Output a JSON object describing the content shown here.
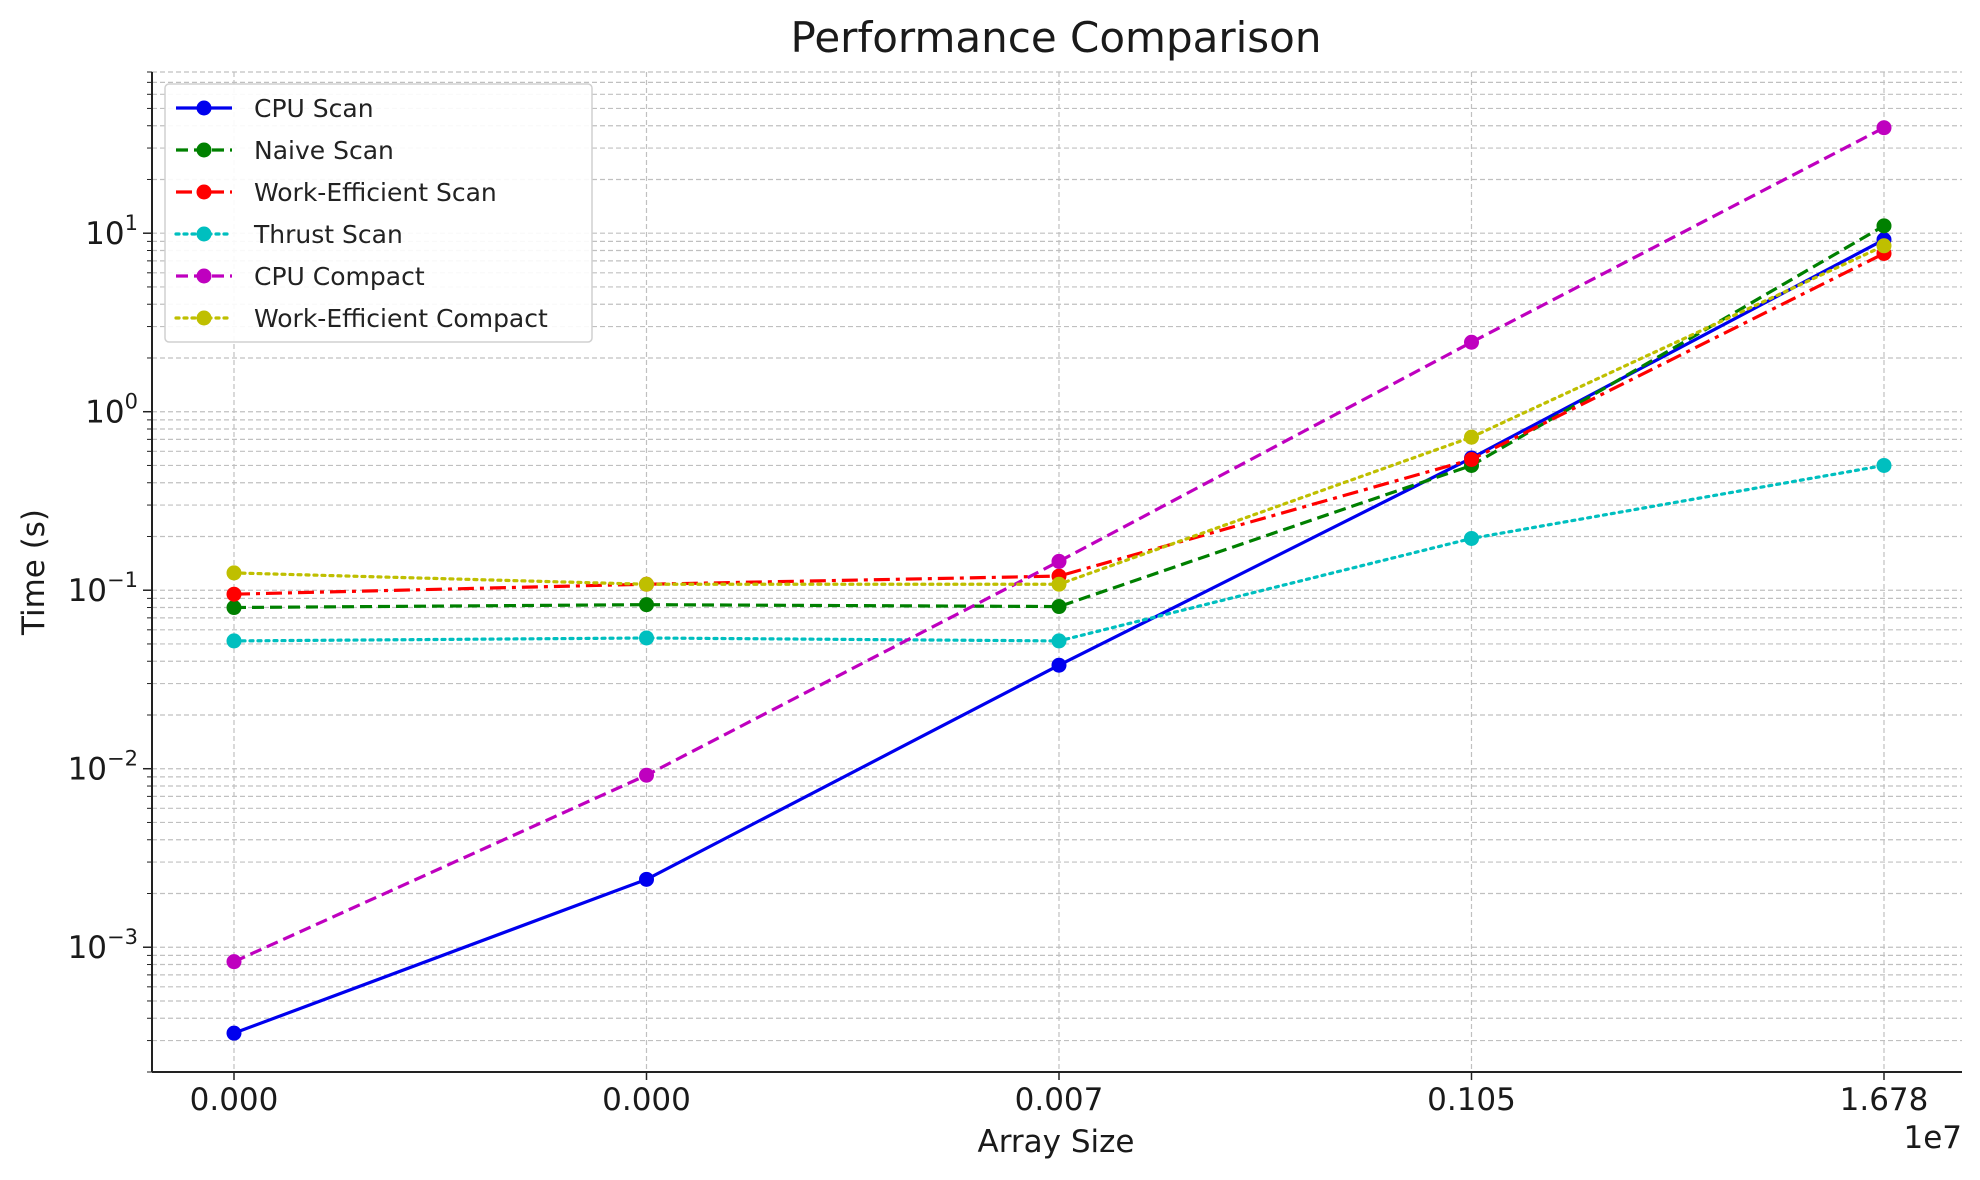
{
  "chart_data": {
    "type": "line",
    "title": "Performance Comparison",
    "xlabel": "Array Size",
    "ylabel": "Time (s)",
    "x_offset_label": "1e7",
    "yscale": "log",
    "ylim": [
      0.0002,
      80
    ],
    "grid": true,
    "legend_position": "top-left",
    "categories": [
      "0.000",
      "0.000",
      "0.007",
      "0.105",
      "1.678"
    ],
    "y_ticks": [
      {
        "base": "10",
        "exp": "−3",
        "value": 0.001
      },
      {
        "base": "10",
        "exp": "−2",
        "value": 0.01
      },
      {
        "base": "10",
        "exp": "−1",
        "value": 0.1
      },
      {
        "base": "10",
        "exp": "0",
        "value": 1
      },
      {
        "base": "10",
        "exp": "1",
        "value": 10
      }
    ],
    "series": [
      {
        "name": "CPU Scan",
        "color": "#0000ee",
        "dash": "solid",
        "values": [
          0.00033,
          0.0024,
          0.038,
          0.55,
          9.2
        ]
      },
      {
        "name": "Naive Scan",
        "color": "#008000",
        "dash": "dashed",
        "values": [
          0.08,
          0.083,
          0.081,
          0.5,
          11.0
        ]
      },
      {
        "name": "Work-Efficient Scan",
        "color": "#ff0000",
        "dash": "dashdot",
        "values": [
          0.095,
          0.108,
          0.12,
          0.54,
          7.7
        ]
      },
      {
        "name": "Thrust Scan",
        "color": "#00bfbf",
        "dash": "dotted",
        "values": [
          0.052,
          0.054,
          0.052,
          0.195,
          0.5
        ]
      },
      {
        "name": "CPU Compact",
        "color": "#bf00bf",
        "dash": "dashed",
        "values": [
          0.00083,
          0.0092,
          0.145,
          2.45,
          39.0
        ]
      },
      {
        "name": "Work-Efficient Compact",
        "color": "#bfbf00",
        "dash": "dotted",
        "values": [
          0.125,
          0.108,
          0.108,
          0.72,
          8.5
        ]
      }
    ]
  }
}
